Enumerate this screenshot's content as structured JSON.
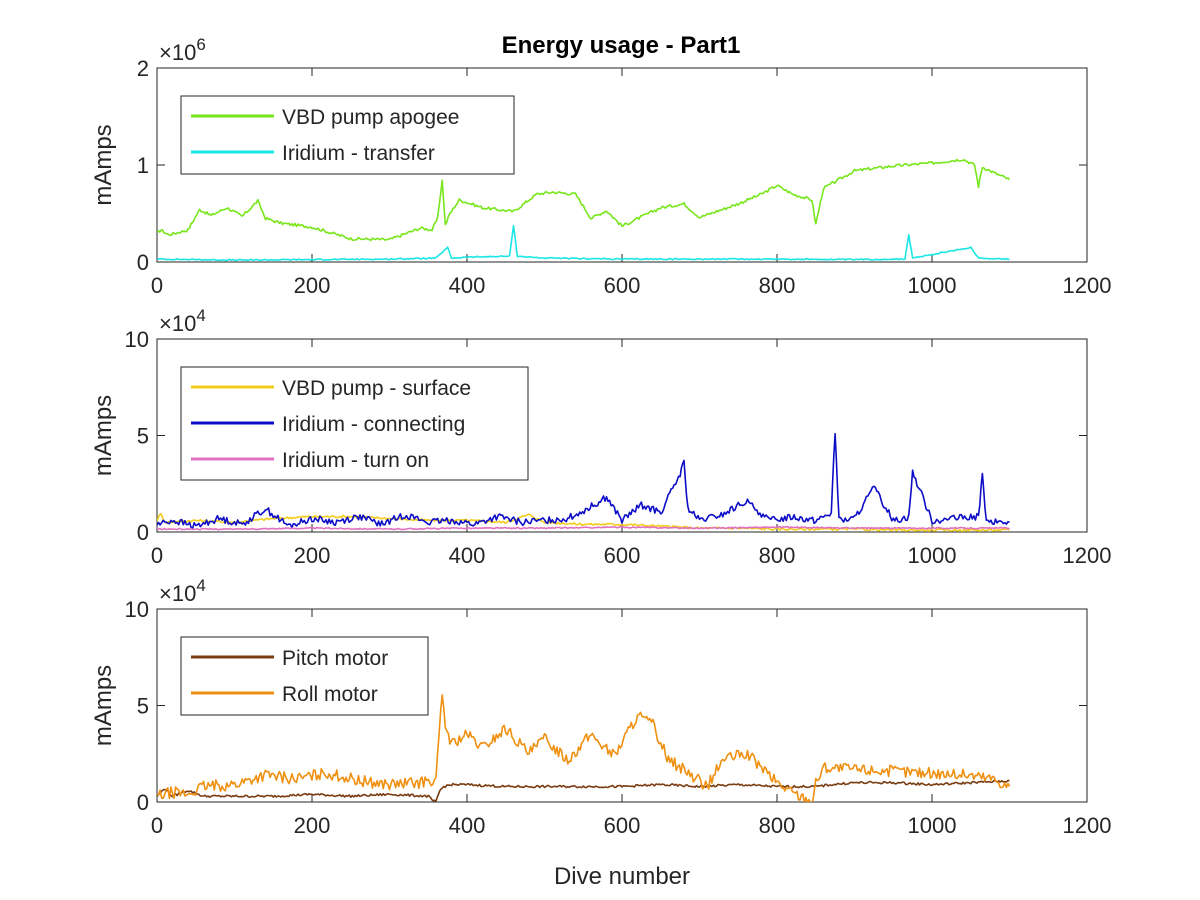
{
  "chart_data": [
    {
      "type": "line",
      "title": "Energy usage - Part1",
      "xlabel": "",
      "ylabel": "mAmps",
      "xlim": [
        0,
        1200
      ],
      "ylim": [
        0,
        2000000
      ],
      "xticks": [
        "0",
        "200",
        "400",
        "600",
        "800",
        "1000",
        "1200"
      ],
      "yticks": [
        "0",
        "1",
        "2"
      ],
      "ytick_values": [
        0,
        1000000,
        2000000
      ],
      "y_exponent": "6",
      "legend_position": "top-left",
      "series": [
        {
          "name": "VBD pump apogee",
          "color": "#77e61a",
          "x": [
            0,
            5,
            15,
            40,
            55,
            70,
            90,
            110,
            130,
            140,
            160,
            200,
            250,
            300,
            340,
            355,
            362,
            368,
            372,
            378,
            390,
            420,
            460,
            490,
            510,
            540,
            560,
            580,
            600,
            650,
            680,
            700,
            750,
            780,
            800,
            820,
            845,
            850,
            860,
            880,
            900,
            950,
            1000,
            1040,
            1055,
            1060,
            1065,
            1080,
            1100
          ],
          "y": [
            300000,
            330000,
            280000,
            330000,
            540000,
            480000,
            560000,
            470000,
            630000,
            450000,
            400000,
            360000,
            240000,
            230000,
            350000,
            330000,
            450000,
            840000,
            380000,
            500000,
            640000,
            560000,
            520000,
            700000,
            720000,
            700000,
            450000,
            530000,
            370000,
            560000,
            600000,
            460000,
            600000,
            700000,
            790000,
            700000,
            640000,
            390000,
            760000,
            850000,
            940000,
            990000,
            1020000,
            1060000,
            1000000,
            780000,
            980000,
            920000,
            850000
          ]
        },
        {
          "name": "Iridium - transfer",
          "color": "#1ae6e6",
          "x": [
            0,
            100,
            200,
            300,
            360,
            375,
            380,
            400,
            455,
            460,
            465,
            500,
            600,
            700,
            800,
            900,
            965,
            970,
            975,
            1050,
            1060,
            1100
          ],
          "y": [
            30000,
            20000,
            25000,
            30000,
            40000,
            150000,
            40000,
            50000,
            60000,
            380000,
            60000,
            40000,
            30000,
            30000,
            30000,
            25000,
            30000,
            280000,
            40000,
            150000,
            40000,
            30000
          ]
        }
      ]
    },
    {
      "type": "line",
      "title": "",
      "xlabel": "",
      "ylabel": "mAmps",
      "xlim": [
        0,
        1200
      ],
      "ylim": [
        0,
        100000
      ],
      "xticks": [
        "0",
        "200",
        "400",
        "600",
        "800",
        "1000",
        "1200"
      ],
      "yticks": [
        "0",
        "5",
        "10"
      ],
      "ytick_values": [
        0,
        50000,
        100000
      ],
      "y_exponent": "4",
      "legend_position": "top-left",
      "series": [
        {
          "name": "VBD pump - surface",
          "color": "#f2cc1a",
          "x": [
            0,
            5,
            10,
            50,
            100,
            150,
            200,
            250,
            300,
            350,
            400,
            450,
            480,
            500,
            550,
            600,
            650,
            700,
            750,
            800,
            850,
            900,
            950,
            1000,
            1050,
            1100
          ],
          "y": [
            6000,
            10000,
            5000,
            6000,
            5000,
            7000,
            8000,
            8000,
            7000,
            6000,
            6000,
            5000,
            9000,
            5000,
            4000,
            4000,
            3000,
            2000,
            2000,
            1500,
            1500,
            1500,
            1000,
            1000,
            1000,
            1000
          ]
        },
        {
          "name": "Iridium - connecting",
          "color": "#0d0dc8",
          "x": [
            0,
            20,
            50,
            80,
            110,
            140,
            170,
            200,
            230,
            260,
            290,
            320,
            350,
            380,
            410,
            440,
            470,
            500,
            530,
            555,
            580,
            600,
            625,
            650,
            675,
            680,
            685,
            700,
            730,
            760,
            790,
            820,
            850,
            870,
            875,
            880,
            900,
            925,
            950,
            970,
            975,
            1000,
            1030,
            1060,
            1065,
            1070,
            1100
          ],
          "y": [
            4000,
            6000,
            3000,
            7000,
            4000,
            12000,
            3000,
            7000,
            5000,
            8000,
            4000,
            9000,
            5000,
            6000,
            4000,
            8000,
            5000,
            6000,
            7000,
            12000,
            18000,
            6000,
            14000,
            10000,
            30000,
            36000,
            12000,
            6000,
            9000,
            16000,
            6000,
            8000,
            6000,
            10000,
            52000,
            6000,
            7000,
            23000,
            6000,
            8000,
            31000,
            6000,
            7000,
            8000,
            30000,
            5000,
            5000
          ]
        },
        {
          "name": "Iridium - turn on",
          "color": "#e070c0",
          "x": [
            0,
            100,
            200,
            300,
            400,
            500,
            600,
            700,
            800,
            900,
            1000,
            1100
          ],
          "y": [
            1500,
            1500,
            2000,
            1500,
            2000,
            2000,
            2500,
            2000,
            2500,
            2000,
            2000,
            2000
          ]
        }
      ]
    },
    {
      "type": "line",
      "title": "",
      "xlabel": "Dive number",
      "ylabel": "mAmps",
      "xlim": [
        0,
        1200
      ],
      "ylim": [
        0,
        100000
      ],
      "xticks": [
        "0",
        "200",
        "400",
        "600",
        "800",
        "1000",
        "1200"
      ],
      "yticks": [
        "0",
        "5",
        "10"
      ],
      "ytick_values": [
        0,
        50000,
        100000
      ],
      "y_exponent": "4",
      "legend_position": "top-left",
      "series": [
        {
          "name": "Pitch motor",
          "color": "#7a3d12",
          "x": [
            0,
            10,
            20,
            40,
            60,
            100,
            150,
            200,
            250,
            300,
            350,
            355,
            360,
            365,
            370,
            380,
            400,
            450,
            500,
            550,
            600,
            650,
            700,
            750,
            800,
            850,
            870,
            900,
            950,
            1000,
            1050,
            1100
          ],
          "y": [
            3000,
            7000,
            3000,
            6000,
            3000,
            3000,
            3000,
            4000,
            3000,
            4000,
            3000,
            1000,
            0,
            6000,
            8000,
            9000,
            9000,
            8000,
            8000,
            8000,
            8000,
            9000,
            8000,
            9000,
            8000,
            8000,
            9000,
            10000,
            10000,
            9000,
            10000,
            11000
          ]
        },
        {
          "name": "Roll motor",
          "color": "#f09010",
          "x": [
            0,
            20,
            40,
            60,
            100,
            140,
            180,
            220,
            260,
            300,
            340,
            360,
            368,
            372,
            380,
            400,
            420,
            450,
            480,
            500,
            530,
            560,
            590,
            620,
            640,
            660,
            690,
            710,
            730,
            760,
            780,
            800,
            820,
            845,
            850,
            860,
            900,
            950,
            1000,
            1050,
            1080,
            1100
          ],
          "y": [
            3000,
            5000,
            4000,
            8000,
            9000,
            14000,
            12000,
            15000,
            11000,
            9000,
            10000,
            12000,
            55000,
            40000,
            30000,
            35000,
            28000,
            38000,
            25000,
            33000,
            22000,
            35000,
            24000,
            45000,
            40000,
            22000,
            14000,
            8000,
            22000,
            25000,
            18000,
            10000,
            5000,
            0,
            10000,
            18000,
            17000,
            16000,
            15000,
            14000,
            12000,
            8000
          ]
        }
      ]
    }
  ]
}
